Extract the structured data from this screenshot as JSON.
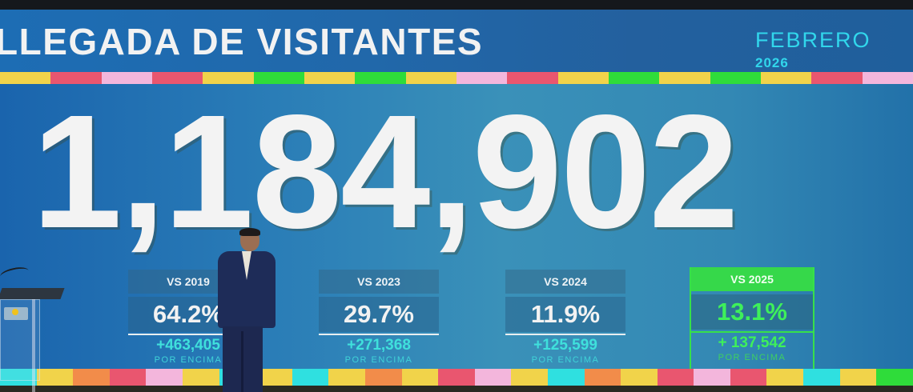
{
  "header": {
    "title": "LLEGADA DE VISITANTES",
    "month": "FEBRERO",
    "year": "2026"
  },
  "main": {
    "total_visitors": "1,184,902"
  },
  "comparisons": [
    {
      "label": "VS 2019",
      "percent": "64.2%",
      "delta": "+463,405",
      "sub": "POR ENCIMA",
      "highlight": false
    },
    {
      "label": "VS 2023",
      "percent": "29.7%",
      "delta": "+271,368",
      "sub": "POR ENCIMA",
      "highlight": false
    },
    {
      "label": "VS 2024",
      "percent": "11.9%",
      "delta": "+125,599",
      "sub": "POR ENCIMA",
      "highlight": false
    },
    {
      "label": "VS 2025",
      "percent": "13.1%",
      "delta": "+ 137,542",
      "sub": "POR ENCIMA",
      "highlight": true
    }
  ],
  "colors": {
    "header_bg": "#1d6db4",
    "accent_cyan": "#31d7ec",
    "highlight_green": "#36d84a",
    "delta_teal": "#3fe0dc",
    "number_white": "#f3f3f3"
  },
  "decor": {
    "strip_top": [
      "#f1d34a",
      "#e9566f",
      "#f3b6dc",
      "#e9566f",
      "#f1d34a",
      "#2fdc3a",
      "#f1d34a",
      "#2fdc3a",
      "#f1d34a",
      "#f3b6dc",
      "#e9566f",
      "#f1d34a",
      "#2fdc3a",
      "#f1d34a",
      "#2fdc3a",
      "#f1d34a",
      "#e9566f",
      "#f3b6dc"
    ],
    "strip_bottom": [
      "#2fe0e0",
      "#f1d34a",
      "#f28c4a",
      "#e9566f",
      "#f3b6dc",
      "#f1d34a",
      "#2fe0e0",
      "#f1d34a",
      "#2fe0e0",
      "#f1d34a",
      "#f28c4a",
      "#f1d34a",
      "#e9566f",
      "#f3b6dc",
      "#f1d34a",
      "#2fe0e0",
      "#f28c4a",
      "#f1d34a",
      "#e9566f",
      "#f3b6dc",
      "#e9566f",
      "#f1d34a",
      "#2fe0e0",
      "#f1d34a",
      "#2fdc3a"
    ]
  }
}
